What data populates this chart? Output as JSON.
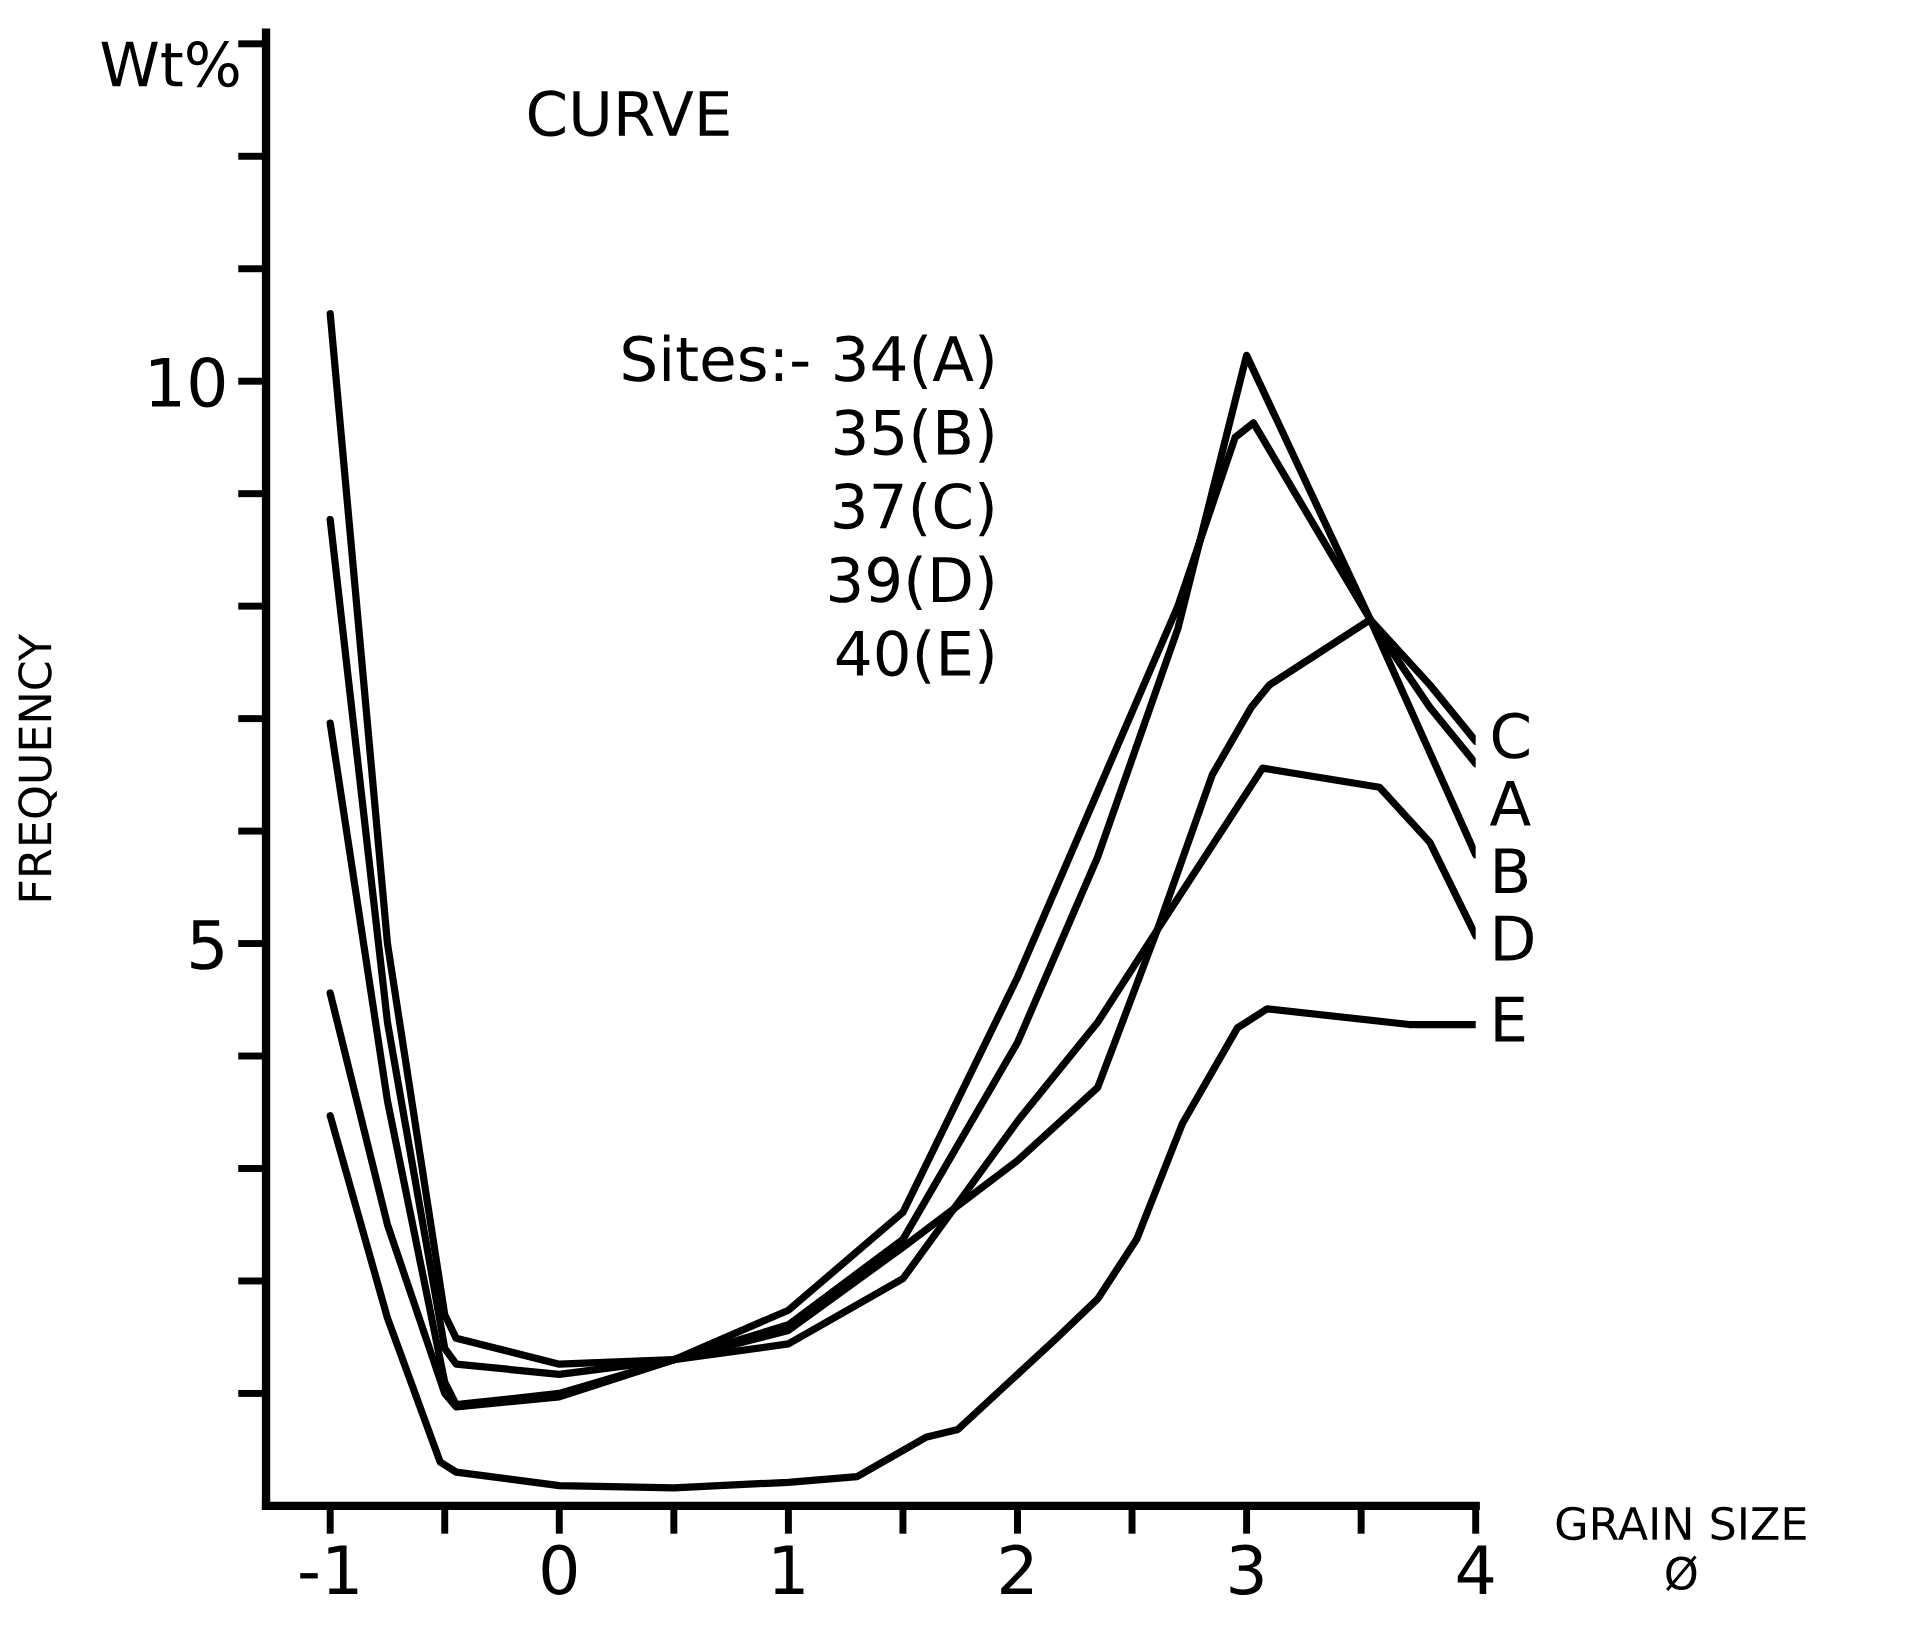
{
  "chart_data": {
    "type": "line",
    "title": "CURVE",
    "ylabel": "FREQUENCY",
    "xlabel": "GRAIN SIZE\nØ",
    "annotations": [
      "Wt%",
      "Sites:- 34(A)",
      "35(B)",
      "37(C)",
      "39(D)",
      "40(E)"
    ],
    "series": [
      {
        "name": "C",
        "color": "#000000",
        "x": [
          -1,
          -0.75,
          -0.5,
          -0.45,
          0,
          0.5,
          1,
          1.5,
          2,
          2.35,
          2.61,
          2.85,
          3.02,
          3.1,
          3.54,
          3.8,
          4
        ],
        "values": [
          6.96,
          3.6,
          1.1,
          0.9,
          1.0,
          1.3,
          1.56,
          2.3,
          3.07,
          3.72,
          5.12,
          6.5,
          7.1,
          7.3,
          7.88,
          7.3,
          6.8
        ]
      },
      {
        "name": "A",
        "color": "#000000",
        "x": [
          -1,
          -0.75,
          -0.5,
          -0.45,
          0,
          0.5,
          1,
          1.5,
          2,
          2.35,
          2.7,
          2.95,
          3.03,
          3.3,
          3.54,
          3.8,
          4
        ],
        "values": [
          8.77,
          4.3,
          1.4,
          1.26,
          1.17,
          1.3,
          1.74,
          2.61,
          4.7,
          6.35,
          8.0,
          9.5,
          9.63,
          8.7,
          7.88,
          7.1,
          6.6
        ]
      },
      {
        "name": "B",
        "color": "#000000",
        "x": [
          -1,
          -0.75,
          -0.5,
          -0.45,
          0,
          0.5,
          1,
          1.5,
          2,
          2.35,
          2.7,
          3.0,
          3.54,
          4
        ],
        "values": [
          10.6,
          5.0,
          1.7,
          1.49,
          1.26,
          1.3,
          1.61,
          2.37,
          4.12,
          5.77,
          7.8,
          10.23,
          7.88,
          5.79
        ]
      },
      {
        "name": "D",
        "color": "#000000",
        "x": [
          -1,
          -0.75,
          -0.5,
          -0.45,
          0,
          0.5,
          1,
          1.5,
          2,
          2.35,
          2.61,
          3.07,
          3.58,
          3.8,
          4
        ],
        "values": [
          4.56,
          2.5,
          1.0,
          0.88,
          0.97,
          1.3,
          1.44,
          2.02,
          3.42,
          4.3,
          5.12,
          6.56,
          6.39,
          5.9,
          5.07
        ]
      },
      {
        "name": "E",
        "color": "#000000",
        "x": [
          -1,
          -0.75,
          -0.52,
          -0.45,
          0,
          0.5,
          1,
          1.3,
          1.6,
          1.74,
          2.17,
          2.35,
          2.52,
          2.72,
          2.96,
          3.09,
          3.71,
          4
        ],
        "values": [
          3.47,
          1.67,
          0.39,
          0.3,
          0.18,
          0.16,
          0.21,
          0.26,
          0.61,
          0.68,
          1.49,
          1.84,
          2.37,
          3.4,
          4.25,
          4.42,
          4.28,
          4.28
        ]
      }
    ],
    "xlim": [
      -1.28,
      4
    ],
    "xticks": [
      -1,
      {
        "value": -0.5,
        "label": null
      },
      0,
      {
        "value": 0.5,
        "label": null
      },
      1,
      {
        "value": 1.5,
        "label": null
      },
      2,
      {
        "value": 2.5,
        "label": null
      },
      3,
      {
        "value": 3.5,
        "label": null
      },
      4
    ],
    "ylim": [
      0,
      13.1
    ],
    "yticks": [
      {
        "value": 1,
        "label": null
      },
      {
        "value": 2,
        "label": null
      },
      {
        "value": 3,
        "label": null
      },
      {
        "value": 4,
        "label": null
      },
      5,
      {
        "value": 6,
        "label": null
      },
      {
        "value": 7,
        "label": null
      },
      {
        "value": 8,
        "label": null
      },
      {
        "value": 9,
        "label": null
      },
      10,
      {
        "value": 11,
        "label": null
      },
      {
        "value": 12,
        "label": null
      },
      {
        "value": 13,
        "label": null
      }
    ],
    "grid": false,
    "legend": false,
    "marker": "none",
    "line_style": "solid"
  }
}
